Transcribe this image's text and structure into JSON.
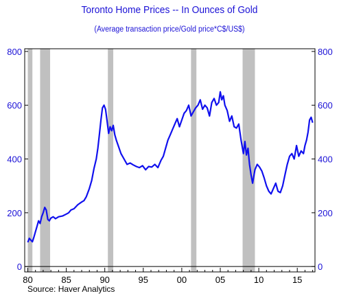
{
  "header": {
    "title": "Toronto Home Prices -- In Ounces of Gold",
    "subtitle": "(Average transaction price/Gold price*C$/US$)"
  },
  "footer": {
    "source": "Source: Haver Analytics"
  },
  "colors": {
    "title": "#1a10d6",
    "axis_left": "#1a10d6",
    "axis_right": "#1a10d6",
    "line": "#1010ee",
    "recession": "#c0c0c0",
    "frame": "#000000"
  },
  "chart_data": {
    "type": "line",
    "title": "Toronto Home Prices -- In Ounces of Gold",
    "subtitle": "(Average transaction price/Gold price*C$/US$)",
    "xlim": [
      1979.6,
      2017.3
    ],
    "ylim": [
      -20,
      810
    ],
    "y_ticks": [
      0,
      200,
      400,
      600,
      800
    ],
    "y_tick_labels": [
      "0",
      "200",
      "400",
      "600",
      "800"
    ],
    "x_ticks": [
      1980,
      1985,
      1990,
      1995,
      2000,
      2005,
      2010,
      2015
    ],
    "x_tick_labels": [
      "80",
      "85",
      "90",
      "95",
      "00",
      "05",
      "10",
      "15"
    ],
    "recession_bands": [
      [
        1980.0,
        1980.6
      ],
      [
        1981.6,
        1982.9
      ],
      [
        1990.4,
        1991.1
      ],
      [
        2001.2,
        2001.9
      ],
      [
        2007.9,
        2009.5
      ]
    ],
    "series": [
      {
        "x": [
          1980.0,
          1980.2,
          1980.4,
          1980.6,
          1980.8,
          1981.0,
          1981.2,
          1981.4,
          1981.6,
          1981.8,
          1982.0,
          1982.2,
          1982.4,
          1982.6,
          1982.8,
          1983.0,
          1983.3,
          1983.6,
          1984.0,
          1984.5,
          1985.0,
          1985.3,
          1985.6,
          1986.0,
          1986.5,
          1987.0,
          1987.3,
          1987.6,
          1988.0,
          1988.3,
          1988.6,
          1988.9,
          1989.1,
          1989.3,
          1989.5,
          1989.7,
          1989.9,
          1990.1,
          1990.3,
          1990.5,
          1990.7,
          1990.9,
          1991.1,
          1991.3,
          1991.5,
          1991.8,
          1992.1,
          1992.5,
          1992.9,
          1993.3,
          1993.7,
          1994.1,
          1994.5,
          1994.9,
          1995.3,
          1995.7,
          1996.1,
          1996.5,
          1996.9,
          1997.3,
          1997.6,
          1997.9,
          1998.2,
          1998.5,
          1998.8,
          1999.1,
          1999.4,
          1999.7,
          2000.0,
          2000.3,
          2000.6,
          2000.9,
          2001.2,
          2001.5,
          2001.8,
          2002.1,
          2002.4,
          2002.7,
          2003.0,
          2003.3,
          2003.6,
          2003.9,
          2004.2,
          2004.5,
          2004.8,
          2005.0,
          2005.2,
          2005.4,
          2005.6,
          2005.9,
          2006.2,
          2006.5,
          2006.8,
          2007.1,
          2007.4,
          2007.7,
          2008.0,
          2008.2,
          2008.4,
          2008.6,
          2008.8,
          2009.0,
          2009.2,
          2009.5,
          2009.8,
          2010.1,
          2010.4,
          2010.7,
          2011.0,
          2011.3,
          2011.6,
          2011.9,
          2012.2,
          2012.5,
          2012.8,
          2013.1,
          2013.4,
          2013.7,
          2014.0,
          2014.3,
          2014.6,
          2014.9,
          2015.2,
          2015.5,
          2015.8,
          2016.0,
          2016.2,
          2016.4,
          2016.6,
          2016.8,
          2017.0
        ],
        "y": [
          90,
          105,
          98,
          92,
          110,
          130,
          150,
          170,
          160,
          185,
          200,
          220,
          210,
          175,
          170,
          180,
          185,
          178,
          185,
          188,
          195,
          200,
          210,
          215,
          230,
          240,
          245,
          260,
          290,
          320,
          365,
          400,
          440,
          490,
          545,
          590,
          600,
          585,
          540,
          495,
          520,
          505,
          525,
          490,
          470,
          445,
          420,
          400,
          380,
          385,
          378,
          372,
          368,
          375,
          360,
          372,
          370,
          380,
          368,
          395,
          410,
          440,
          470,
          490,
          510,
          530,
          550,
          520,
          545,
          570,
          580,
          600,
          560,
          575,
          590,
          600,
          620,
          585,
          600,
          590,
          560,
          610,
          625,
          600,
          610,
          650,
          620,
          635,
          600,
          580,
          540,
          560,
          520,
          515,
          530,
          470,
          420,
          465,
          415,
          440,
          380,
          340,
          310,
          360,
          380,
          370,
          355,
          330,
          300,
          280,
          270,
          290,
          310,
          280,
          275,
          300,
          340,
          380,
          410,
          420,
          400,
          450,
          410,
          430,
          420,
          450,
          470,
          500,
          545,
          555,
          535
        ]
      }
    ]
  }
}
